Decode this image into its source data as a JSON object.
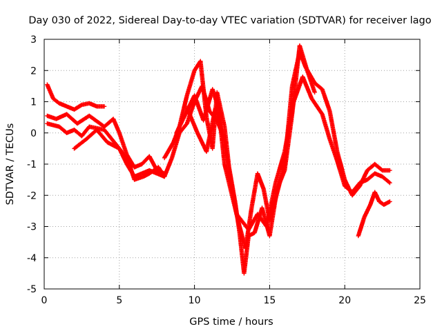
{
  "chart_data": {
    "type": "scatter",
    "title": "Day 030 of 2022, Sidereal Day-to-day VTEC variation (SDTVAR) for receiver lago",
    "xlabel": "GPS time / hours",
    "ylabel": "SDTVAR / TECUs",
    "xlim": [
      0,
      25
    ],
    "ylim": [
      -5,
      3
    ],
    "xticks": [
      "0",
      "5",
      "10",
      "15",
      "20",
      "25"
    ],
    "yticks": [
      "-5",
      "-4",
      "-3",
      "-2",
      "-1",
      "0",
      "1",
      "2",
      "3"
    ],
    "grid": true,
    "marker": "plus",
    "color": "#ff0000",
    "series": [
      {
        "x": [
          0.2,
          0.6,
          1.0,
          1.5,
          2.0,
          2.5,
          3.0,
          3.5,
          4.0
        ],
        "y": [
          1.55,
          1.1,
          0.95,
          0.85,
          0.75,
          0.9,
          0.95,
          0.85,
          0.85
        ]
      },
      {
        "x": [
          0.2,
          0.8,
          1.5,
          2.2,
          3.0,
          4.0,
          4.6,
          5.0,
          5.5,
          6.0,
          6.5,
          7.0,
          7.5,
          8.0
        ],
        "y": [
          0.55,
          0.45,
          0.6,
          0.3,
          0.55,
          0.2,
          0.45,
          0.0,
          -0.7,
          -1.1,
          -1.0,
          -0.75,
          -1.2,
          -1.3
        ]
      },
      {
        "x": [
          0.2,
          1.0,
          1.5,
          2.0,
          2.5,
          3.0,
          4.0,
          5.0,
          5.5,
          6.0,
          6.5,
          7.0,
          7.5,
          8.0
        ],
        "y": [
          0.3,
          0.2,
          0.0,
          0.1,
          -0.1,
          0.2,
          0.1,
          -0.5,
          -1.0,
          -1.4,
          -1.3,
          -1.2,
          -1.3,
          -1.4
        ]
      },
      {
        "x": [
          2.0,
          2.8,
          3.5,
          4.2,
          5.0,
          5.6,
          6.0,
          6.6,
          7.0,
          7.6,
          8.0,
          8.5,
          9.0,
          9.5,
          10.0,
          10.5,
          11.0,
          11.5,
          12.0
        ],
        "y": [
          -0.5,
          -0.2,
          0.1,
          -0.3,
          -0.5,
          -0.9,
          -1.5,
          -1.4,
          -1.3,
          -1.1,
          -1.4,
          -0.8,
          0.0,
          0.3,
          1.0,
          1.5,
          0.7,
          0.4,
          -0.2
        ]
      },
      {
        "x": [
          8.0,
          8.6,
          9.0,
          9.5,
          10.0,
          10.4,
          10.8,
          11.2,
          11.5,
          12.0,
          12.3,
          12.7,
          13.0,
          13.3,
          13.6,
          14.0,
          14.5,
          15.0,
          15.5,
          16.0,
          16.5,
          17.0,
          17.5,
          18.0
        ],
        "y": [
          -0.8,
          -0.3,
          0.2,
          1.2,
          2.0,
          2.3,
          0.5,
          -0.5,
          1.3,
          0.2,
          -1.1,
          -2.2,
          -3.2,
          -4.5,
          -3.3,
          -3.2,
          -2.4,
          -3.3,
          -1.8,
          -1.2,
          0.6,
          2.8,
          2.0,
          1.3
        ]
      },
      {
        "x": [
          8.8,
          9.4,
          10.0,
          10.6,
          11.2,
          11.6,
          12.0,
          12.5,
          13.0,
          13.4,
          13.8,
          14.2,
          14.6,
          15.0,
          15.4,
          16.0,
          16.5,
          17.0,
          17.4,
          18.0,
          18.5,
          19.0,
          19.5,
          20.0,
          20.5,
          21.0,
          21.5,
          22.0,
          22.5,
          23.0
        ],
        "y": [
          0.0,
          0.6,
          1.2,
          0.4,
          1.4,
          0.8,
          -1.0,
          -2.0,
          -3.0,
          -3.7,
          -2.4,
          -1.3,
          -1.8,
          -2.8,
          -2.1,
          -1.0,
          1.5,
          2.6,
          2.1,
          1.6,
          1.4,
          0.7,
          -0.6,
          -1.5,
          -2.0,
          -1.7,
          -1.2,
          -1.0,
          -1.2,
          -1.2
        ]
      },
      {
        "x": [
          9.5,
          10.2,
          10.8,
          11.4,
          12.0,
          12.8,
          13.6,
          14.2,
          14.8,
          15.4,
          16.0,
          16.6,
          17.2,
          17.8,
          18.5,
          19.0,
          19.5,
          20.0,
          20.5,
          21.0,
          21.5,
          22.0,
          22.5,
          23.0
        ],
        "y": [
          0.8,
          0.0,
          -0.6,
          0.8,
          -0.3,
          -2.6,
          -3.1,
          -2.6,
          -3.0,
          -1.6,
          -0.6,
          1.0,
          1.8,
          1.1,
          0.6,
          -0.2,
          -0.9,
          -1.7,
          -1.9,
          -1.6,
          -1.5,
          -1.3,
          -1.4,
          -1.6
        ]
      },
      {
        "x": [
          20.9,
          21.3,
          21.7,
          22.0,
          22.3,
          22.6,
          23.0
        ],
        "y": [
          -3.3,
          -2.7,
          -2.3,
          -1.9,
          -2.2,
          -2.3,
          -2.2
        ]
      }
    ]
  }
}
